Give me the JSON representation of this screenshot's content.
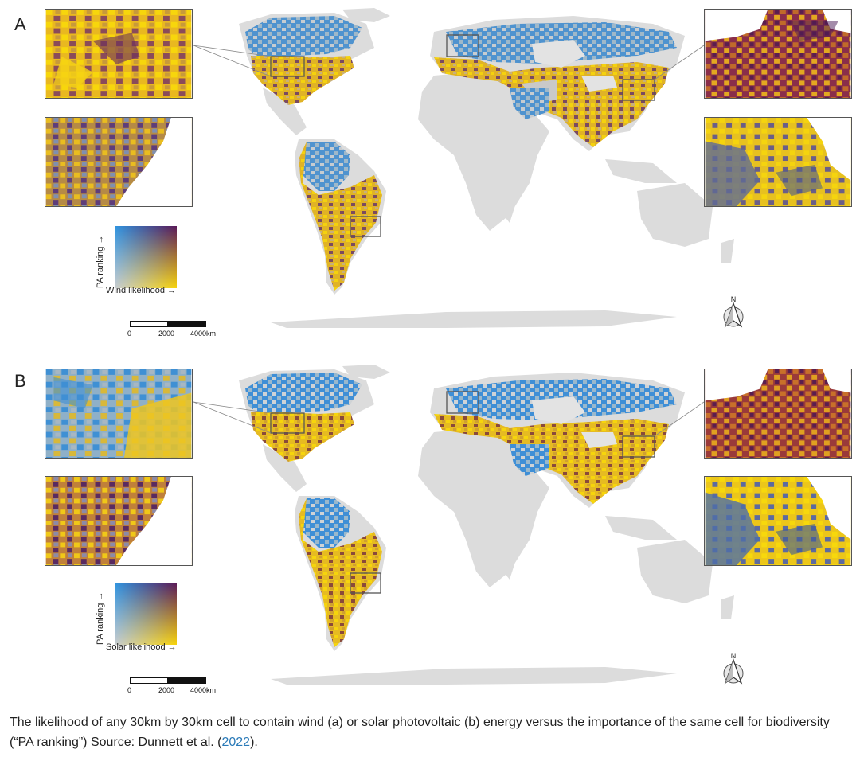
{
  "panels": [
    {
      "letter": "A",
      "legend_y": "PA ranking →",
      "legend_x": "Wind likelihood →"
    },
    {
      "letter": "B",
      "legend_y": "PA ranking →",
      "legend_x": "Solar likelihood →"
    }
  ],
  "scalebar": {
    "ticks": [
      "0",
      "2000",
      "4000km"
    ]
  },
  "north_label": "N",
  "caption": {
    "text": "The likelihood of any 30km by 30km cell to contain wind (a) or solar photovoltaic (b) energy versus the importance of the same cell for biodiversity (“PA ranking”) Source: Dunnett et al. (",
    "link": "2022",
    "end": ")."
  },
  "colors": {
    "land": "#dcdcdc",
    "low_rank_high_likelihood": "#f2c811",
    "high_rank_low_likelihood": "#2e8fd6",
    "high_rank_high_likelihood": "#4a1a55",
    "low_rank_low_likelihood": "#c9c9c9",
    "link": "#2a7ab8"
  }
}
